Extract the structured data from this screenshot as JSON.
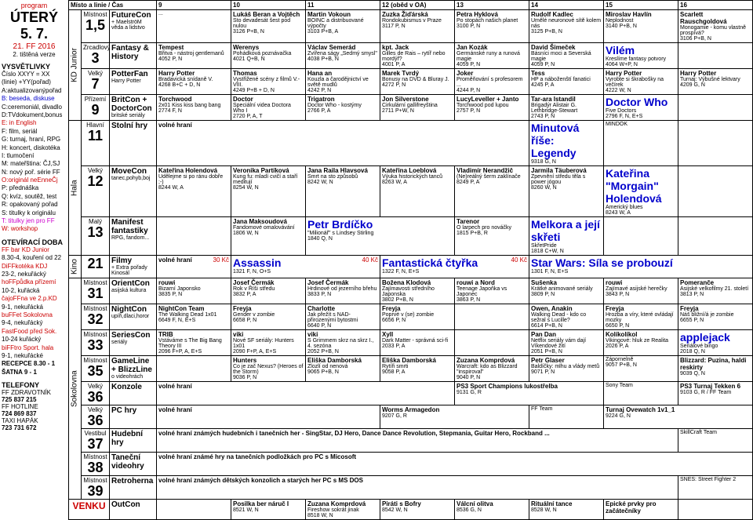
{
  "header": {
    "program": "program",
    "day": "ÚTERÝ",
    "date": "5. 7.",
    "ff": "21. FF 2016",
    "ver": "2. tištěná verze"
  },
  "legend_title": "VYSVĚTLIVKY",
  "legend": [
    "Číslo XXYY = XX",
    "(linie) +YY(pořad)",
    "",
    "A:aktualizovanýpořad",
    "B: beseda, diskuse",
    "C:ceremoniál, divadlo",
    "D:TVdokument,bonus",
    "E: in English",
    "F: film, seriál",
    "G: turnaj, hraní, RPG",
    "H: koncert, diskotéka",
    "I: tlumočení",
    "M: mateřština: ČJ,SJ",
    "N: nový poř. série FF",
    "O:originál neEnneČj",
    "P: přednáška",
    "Q: kvíz, soutěž, test",
    "R: opakovaný pořad",
    "S: titulky k originálu",
    "T: titulky jen pro FF",
    "W: workshop"
  ],
  "open_title": "OTEVÍRACÍ DOBA",
  "open": [
    "FF bar KD Junior",
    "8.30-4, kouření od 22",
    "DiFFkotéka KDJ",
    "23-2, nekuřácký",
    "hoFFpůdka přízemí",
    "10-2, kuřácká",
    "čajoFFna ve 2.p.KD",
    "9-1, nekuřácká",
    "buFFet Sokolovna",
    "9-4, nekuřácký",
    "FastFood před Sok.",
    "10-24 kuřácký",
    "biFFtro Sport. hala",
    "9-1, nekuřácké",
    "RECEPCE 8.30 - 1",
    "ŠATNA 9 - 1"
  ],
  "tel_title": "TELEFONY",
  "tel": [
    "FF ZDRAVOTNÍK",
    "725 837 215",
    "FF HOTLINE",
    "724 869 837",
    "TAXI HAPÁK",
    "723 731 672"
  ],
  "top_header": {
    "misto": "Místo a linie / Čas",
    "times": [
      "9",
      "10",
      "11",
      "12 (oběd v OA)",
      "13",
      "14",
      "15",
      "16"
    ]
  },
  "blocks": {
    "kd": "KD Junior",
    "hala": "Hala",
    "kino": "Kino",
    "sokol": "Sokolovna"
  },
  "rows": [
    {
      "room": "Místnost",
      "num": "1,5",
      "track": "FutureCon",
      "trackSub": "+ MaelströM",
      "trackFoot": "věda a lidstvo",
      "cells": [
        {
          "t": "",
          "s": "...",
          "c": ""
        },
        {
          "t": "Lukáš Beran a Vojtěch",
          "s": "Sto devadesát šest pod nulou",
          "c": "3126 P+B, N"
        },
        {
          "t": "Martin Vokoun",
          "s": "BOINC a distribuované výpočty",
          "c": "3103 P+B, A"
        },
        {
          "t": "Zuzka Žiďárská",
          "s": "Rondokubismus v Praze",
          "c": "3117 P, N"
        },
        {
          "t": "Petra Hyklová",
          "s": "Po stopách našich planet",
          "c": "3100 P, N"
        },
        {
          "t": "Rudolf Kadlec",
          "s": "Umělé neuronové sítě kolem nás",
          "c": "3125 P+B, N"
        },
        {
          "t": "Miroslav Havlín",
          "s": "Neplodnost",
          "c": "3140 P+B, N"
        },
        {
          "t": "Scarlett Rauschgoldová",
          "s": "Monogamie - komu vlastně prospívá?",
          "c": "3106 P+B, N"
        }
      ]
    },
    {
      "room": "Zrcadlový",
      "num": "3",
      "track": "Fantasy & History",
      "trackSub": "",
      "trackFoot": "",
      "cells": [
        {
          "t": "Tempest",
          "s": "Břitva - nástroj gentlemanů",
          "c": "4052 P, N"
        },
        {
          "t": "Werenys",
          "s": "Pohádková poznávačka",
          "c": "4021 Q+B, N"
        },
        {
          "t": "Václav Semerád",
          "s": "Zvířena ságy „Sedmý smysl\"",
          "c": "4038 P+B, N"
        },
        {
          "t": "kpt. Jack",
          "s": "Gilles de Rais – rytíř nebo mordýř?",
          "c": "4001 P, A"
        },
        {
          "t": "Jan Kozák",
          "s": "Germánské runy a runová magie",
          "c": "4059 P, N"
        },
        {
          "t": "David Šimeček",
          "s": "Básníci moci a Severská magie",
          "c": "4059 P, N"
        },
        {
          "t": "Vilém",
          "s": "Kreslíme fantasy potvory",
          "c": "4064 W+P, N",
          "big": true
        },
        {
          "t": "",
          "s": "",
          "c": ""
        }
      ]
    },
    {
      "room": "Velký",
      "num": "7",
      "track": "PotterFan",
      "trackSub": "",
      "trackFoot": "Harry Potter",
      "cells": [
        {
          "t": "Harry Potter",
          "s": "Bradavická snídaně V.",
          "c": "4268 B+C + D, N"
        },
        {
          "t": "Thomas",
          "s": "Vystřižené scény z filmů V.-VIII.",
          "c": "4249 P+B + D, N"
        },
        {
          "t": "Hana an",
          "s": "Kouzla a čarodějnictví ve světě mudlů",
          "c": "4242 P, N"
        },
        {
          "t": "Marek Tvrdý",
          "s": "Bonusy na DVD & Bluray J.",
          "c": "4272 P, N"
        },
        {
          "t": "Joker",
          "s": "Proměňování s profesorem ...",
          "c": "4244 P, N"
        },
        {
          "t": "Tess",
          "s": "HP a náboženští fanatici",
          "c": "4245 P, A"
        },
        {
          "t": "Harry Potter",
          "s": "Vyrobte si škrabošky na večírek",
          "c": "4222 W, N"
        },
        {
          "t": "Harry Potter",
          "s": "Turnaj: Výbušné lektvary",
          "c": "4209 G, N"
        }
      ]
    },
    {
      "room": "Přízemí",
      "num": "9",
      "track": "BritCon + DoctorCon",
      "trackSub": "",
      "trackFoot": "britské seriály",
      "cells": [
        {
          "t": "Torchwood",
          "s": "2x01 Kiss kiss bang bang",
          "c": "2774 F, N"
        },
        {
          "t": "Doctor",
          "s": "Speciální videa Doctora Who I",
          "c": "2720 P, A, T"
        },
        {
          "t": "Trigatron",
          "s": "Doctor Who - kostýmy",
          "c": "2766 P, A"
        },
        {
          "t": "Jon Silverstone",
          "s": "Cirkulární gallifreyština",
          "c": "2711 P+W, N"
        },
        {
          "t": "LucyLeveller + Janto",
          "s": "Torchwood pod lupou",
          "c": "2757 P, N"
        },
        {
          "t": "Tar-ara Istandil",
          "s": "Brigadýr Alistair G. Lethbridge-Stewart",
          "c": "2743 P, N"
        },
        {
          "t": "Doctor Who",
          "s": "Five Doctors",
          "c": "2796 F, N, E+S",
          "big": true
        },
        {
          "t": "",
          "s": "",
          "c": ""
        }
      ]
    },
    {
      "room": "Hlavní",
      "num": "11",
      "track": "Stolní hry",
      "trackSub": "",
      "trackFoot": "",
      "cells": [
        {
          "t": "volné hraní",
          "s": "",
          "c": "",
          "span": 5
        },
        {
          "t": "Minutová říše: Legendy",
          "s": "",
          "c": "9318 G, N",
          "big": true
        },
        {
          "t": "",
          "s": "",
          "c": "MINDOK"
        },
        {
          "t": "",
          "s": "",
          "c": ""
        }
      ]
    },
    {
      "room": "Velký",
      "num": "12",
      "track": "MoveCon",
      "trackSub": "",
      "trackFoot": "tanec,pohyb,boj",
      "cells": [
        {
          "t": "Kateřina Holendová",
          "s": "Udělejme si po ránu dobře ;-)",
          "c": "8244 W, A"
        },
        {
          "t": "Veronika Partíková",
          "s": "Kung fu: mladí cvičí a staří meditují",
          "c": "8254 W, N"
        },
        {
          "t": "Jana Raila Hlavsová",
          "s": "Smrt na sto způsobů",
          "c": "8242 W, N"
        },
        {
          "t": "Kateřina Loeblová",
          "s": "Výuka historických tanců",
          "c": "8263 W, A"
        },
        {
          "t": "Vladimír Nerandžič",
          "s": "(Ne)reálný šerm zaklínače",
          "c": "8249 P, A"
        },
        {
          "t": "Jarmila Täuberová",
          "s": "Zpevnění středu těla s power jógou",
          "c": "8260 W, N"
        },
        {
          "t": "Kateřina \"Morgain\" Holendová",
          "s": "Americký blues",
          "c": "8243 W, A",
          "big": true
        },
        {
          "t": "",
          "s": "",
          "c": ""
        }
      ]
    },
    {
      "room": "Malý",
      "num": "13",
      "track": "Manifest fantastiky",
      "trackSub": "",
      "trackFoot": "RPG, fandom...",
      "cells": [
        {
          "t": "",
          "s": "",
          "c": ""
        },
        {
          "t": "Jana Maksoudová",
          "s": "Fandomové omalovávání",
          "c": "1806 W, N"
        },
        {
          "t": "Petr Brdíčko",
          "s": "\"Milionář\" s Lindsey Stirling",
          "c": "1840 Q, N",
          "big": true,
          "span": 2
        },
        {
          "t": "Tarenor",
          "s": "O larpech pro nováčky",
          "c": "1815 P+B, R"
        },
        {
          "t": "Melkora a její skřeti",
          "s": "SkřetPride",
          "c": "1818 C+W, N",
          "big": true
        },
        {
          "t": "",
          "s": "",
          "c": ""
        },
        {
          "t": "",
          "s": "",
          "c": ""
        }
      ]
    },
    {
      "room": "",
      "num": "21",
      "track": "Filmy",
      "trackSub": "+ Extra pořady",
      "trackFoot": "Kinosál",
      "cells": [
        {
          "t": "volné hraní",
          "s": "",
          "c": "",
          "price": "30 Kč"
        },
        {
          "t": "Assassin",
          "s": "",
          "c": "1321 F, N, O+S",
          "big": true,
          "span": 2,
          "price": "40 Kč"
        },
        {
          "t": "Fantastická čtyřka",
          "s": "",
          "c": "1322 F, N, E+S",
          "big": true,
          "span": 2,
          "price": "40 Kč"
        },
        {
          "t": "Star Wars: Síla se probouzí",
          "s": "",
          "c": "1301 F, N, E+S",
          "big": true,
          "span": 3
        }
      ]
    }
  ],
  "sokol_rows": [
    {
      "room": "Místnost",
      "num": "31",
      "track": "OrientCon",
      "trackFoot": "asijská kultura",
      "cells": [
        {
          "t": "rouwi",
          "s": "Bizarní Japonsko",
          "c": "3835 P, N"
        },
        {
          "t": "Josef Čermák",
          "s": "Rok v Říši středu",
          "c": "3832 P, A"
        },
        {
          "t": "Josef Čermák",
          "s": "Hrdinové od jezerního břehu",
          "c": "3833 P, N"
        },
        {
          "t": "Božena Klodová",
          "s": "Zajímavosti středního Japonska",
          "c": "3802 P+B, N"
        },
        {
          "t": "rouwi a Nord",
          "s": "Teenage Japoňka vs Japonec",
          "c": "3863 P, N"
        },
        {
          "t": "Sušenka",
          "s": "Krátké animované seriály",
          "c": "3809 P, N"
        },
        {
          "t": "rouwi",
          "s": "Zajímavé asijské herečky",
          "c": "3843 P, N"
        },
        {
          "t": "Pomeranče",
          "s": "Asijské velkofilmy 21. století",
          "c": "3813 P, N"
        }
      ]
    },
    {
      "room": "Místnost",
      "num": "32",
      "track": "NightCon",
      "trackFoot": "upíři,dlaci,horor",
      "cells": [
        {
          "t": "NightCon Team",
          "s": "The Walking Dead 1x01",
          "c": "6649 F, N, E+S"
        },
        {
          "t": "Freyja",
          "s": "Gender v zombie",
          "c": "6658 P, N"
        },
        {
          "t": "Charlotte",
          "s": "Jak přežít s NAD-přirozenými bytostmi",
          "c": "6640 P, N"
        },
        {
          "t": "Freyja",
          "s": "Poprvé v (se) zombie",
          "c": "6656 P, N"
        },
        {
          "t": "",
          "s": "",
          "c": ""
        },
        {
          "t": "Owen, Anakin",
          "s": "Walking Dead - kdo co sežral s Lucille?",
          "c": "6614 P+B, N"
        },
        {
          "t": "Freyja",
          "s": "Hrozba a víry, které ovládají mozky",
          "c": "6650 P, N"
        },
        {
          "t": "Freyja",
          "s": "Náš bližní/á je zombie",
          "c": "6655 P, N"
        }
      ]
    },
    {
      "room": "Místnost",
      "num": "33",
      "track": "SeriesCon",
      "trackFoot": "seriály",
      "cells": [
        {
          "t": "TRIB",
          "s": "Vstáváme s The Big Bang Theory III",
          "c": "2096 F+P, A, E+S"
        },
        {
          "t": "viki",
          "s": "Nové SF seriály: Hunters 1x01",
          "c": "2090 F+P, A, E+S"
        },
        {
          "t": "viki",
          "s": "S Grimmem skrz na skrz I., 4. sezóna",
          "c": "2052 P+B, N"
        },
        {
          "t": "Xyll",
          "s": "Dark Matter - správná sci-fi",
          "c": "2033 P, A"
        },
        {
          "t": "",
          "s": "",
          "c": ""
        },
        {
          "t": "Pan Dan",
          "s": "Netflix seriály vám dají Víkendové žití",
          "c": "2051 P+B, N"
        },
        {
          "t": "Kolíkolíkol",
          "s": "Vikingové: hluk ze Realita",
          "c": "2026 P, A"
        },
        {
          "t": "applejack",
          "s": "Seriálové bingo",
          "c": "2018 Q, N",
          "big": true
        }
      ]
    },
    {
      "room": "Místnost",
      "num": "35",
      "track": "GameLine + BlizzLine",
      "trackFoot": "o videohrách",
      "cells": [
        {
          "t": "",
          "s": "",
          "c": ""
        },
        {
          "t": "Hunters",
          "s": "Co je zač Nexus? (Heroes of the Storm)",
          "c": "9036 P, N"
        },
        {
          "t": "Eliška Damborská",
          "s": "Zlozlí od nenová",
          "c": "9065 P+B, N"
        },
        {
          "t": "Eliška Damborská",
          "s": "Rytíři smrti",
          "c": "9058 P, A"
        },
        {
          "t": "Zuzana Komprdová",
          "s": "Warcraft: kdo as Blizzard \"inspiroval\"",
          "c": "9040 P, N"
        },
        {
          "t": "Petr Glaser",
          "s": "Baldíčky: mlhu a vlády metů",
          "c": "9071 P, N"
        },
        {
          "t": "",
          "s": "Zápornelně",
          "c": "9057 P+B, N"
        },
        {
          "t": "Blizzard: Puzina, haldi reskirty",
          "s": "",
          "c": "9039 Q, N"
        }
      ]
    },
    {
      "room": "Velký",
      "num": "36",
      "track": "Konzole",
      "cells": [
        {
          "t": "volné hraní",
          "s": "",
          "c": "",
          "span": 4
        },
        {
          "t": "PS3 Sport Champions lukostřelba",
          "s": "",
          "c": "9131 G, R",
          "span": 2
        },
        {
          "t": "",
          "s": "",
          "c": "Sony Team"
        },
        {
          "t": "PS3 Turnaj Tekken 6",
          "s": "",
          "c": "9103 G, R  /  FF Team"
        }
      ]
    },
    {
      "room": "Velký",
      "num": "36",
      "track": "PC hry",
      "cells": [
        {
          "t": "volné hraní",
          "s": "",
          "c": "",
          "span": 3
        },
        {
          "t": "Worms Armagedon",
          "s": "",
          "c": "9207 G, R",
          "span": 2
        },
        {
          "t": "",
          "s": "",
          "c": "FF Team"
        },
        {
          "t": "Turnaj Ovewatch 1v1_1",
          "s": "",
          "c": "9224 G, N",
          "span": 2
        }
      ]
    },
    {
      "room": "Vestibul",
      "num": "37",
      "track": "Hudební hry",
      "cells": [
        {
          "t": "volné hraní známých hudebních i tanečních her - SingStar, DJ Hero, Dance Dance Revolution, Stepmania, Guitar Hero, Rockband ...",
          "span": 7
        },
        {
          "t": "",
          "s": "",
          "c": "SkillCraft Team"
        }
      ]
    },
    {
      "room": "Místnost",
      "num": "38",
      "track": "Taneční videohry",
      "cells": [
        {
          "t": "volné hraní známé hry na tanečních podložkách pro PC s Micosoft",
          "span": 8
        }
      ]
    },
    {
      "room": "Místnost",
      "num": "39",
      "track": "Retroherna",
      "cells": [
        {
          "t": "volné hraní známých dětských konzolich a starých her PC s MS DOS",
          "span": 7
        },
        {
          "t": "",
          "s": "",
          "c": "SNES: Street Fighter 2"
        }
      ]
    }
  ],
  "venku": {
    "label": "VENKU",
    "track": "OutCon",
    "cells": [
      {
        "t": "",
        "s": "",
        "c": ""
      },
      {
        "t": "Posilka ber náruč I",
        "s": "",
        "c": "8521 W, N"
      },
      {
        "t": "Zuzana Komprdová",
        "s": "Fireshow sokrát jinak",
        "c": "8518 W, N"
      },
      {
        "t": "Piráti s Bofry",
        "s": "",
        "c": "8542 W, N"
      },
      {
        "t": "Válcní olitva",
        "s": "",
        "c": "8536 G, N"
      },
      {
        "t": "Rituální tance",
        "s": "",
        "c": "8528 W, N"
      },
      {
        "t": "Epické prvky pro začátečníky",
        "s": "",
        "c": ""
      },
      {
        "t": "",
        "s": "",
        "c": ""
      }
    ]
  }
}
